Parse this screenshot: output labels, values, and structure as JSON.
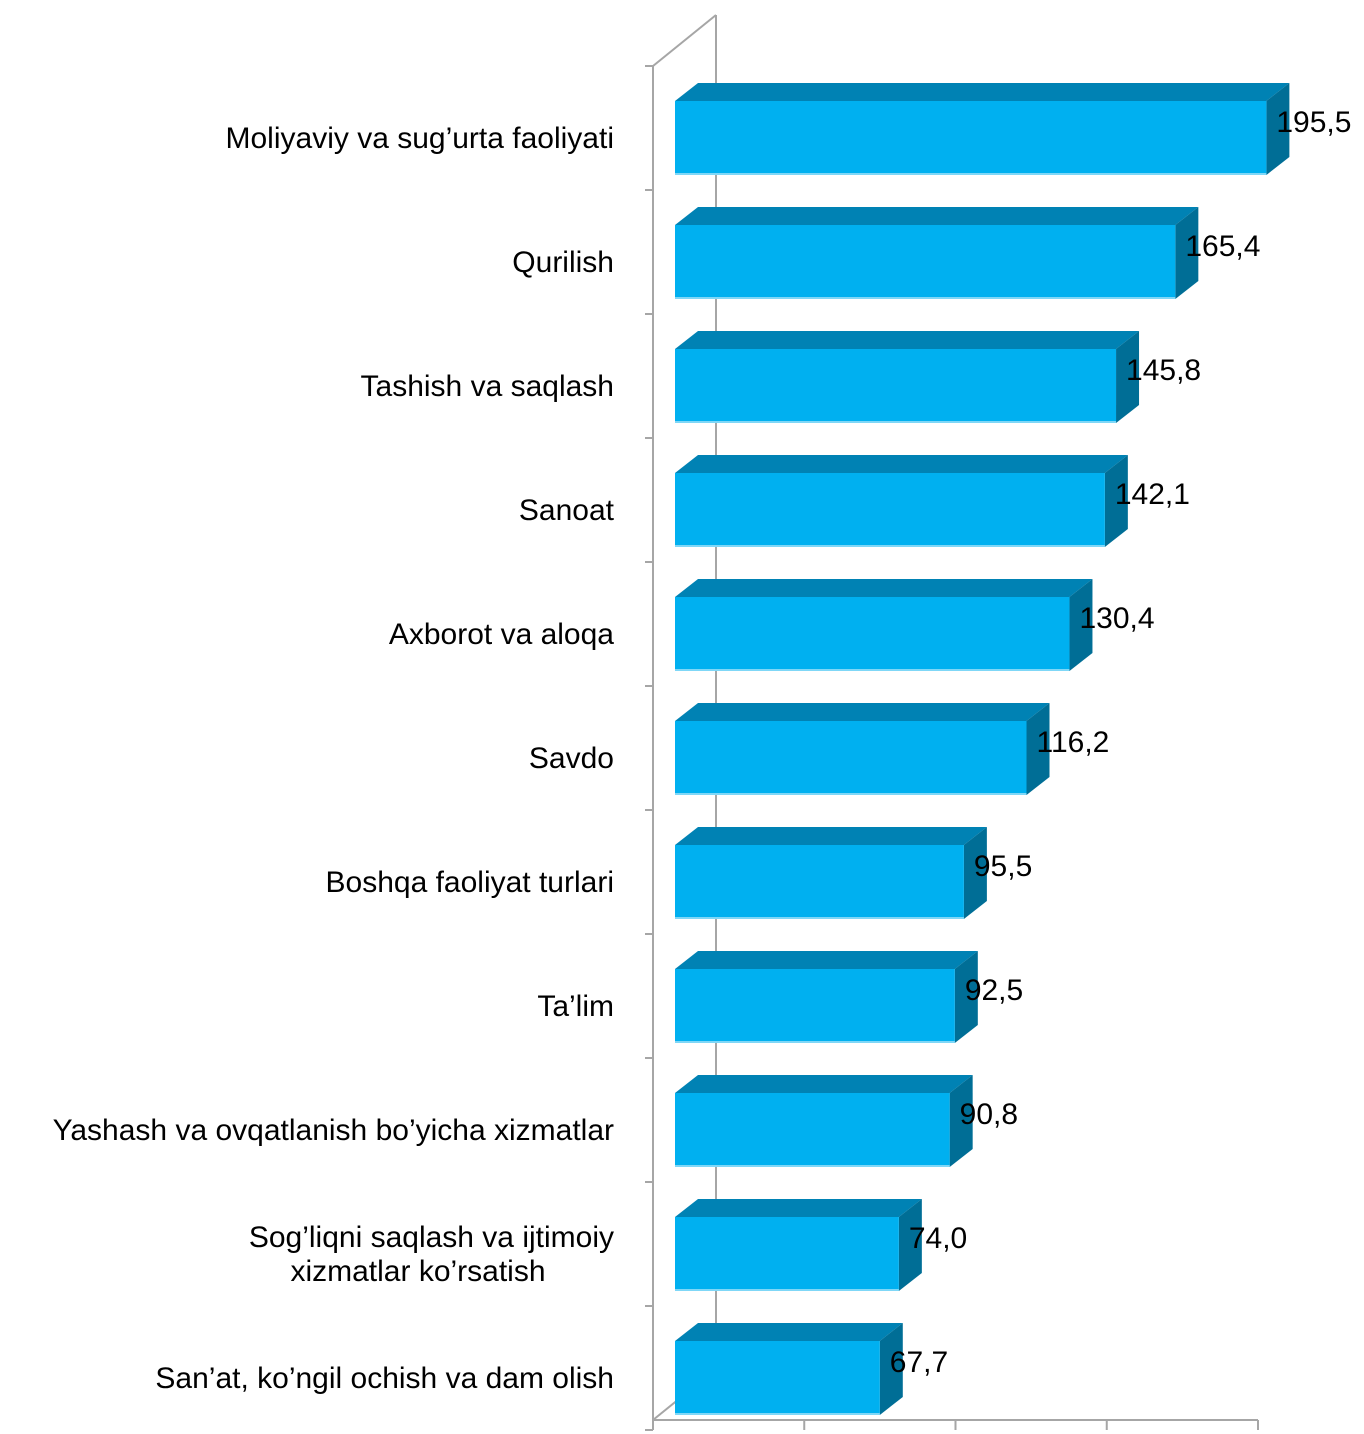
{
  "chart_data": {
    "type": "bar",
    "orientation": "horizontal",
    "style": "3d",
    "title": "",
    "xlabel": "",
    "ylabel": "",
    "xlim": [
      0,
      200
    ],
    "xticks": [
      "0",
      "50",
      "100",
      "150",
      "200"
    ],
    "grid": false,
    "legend": "none",
    "bar_color": "#00B0F0",
    "bar_top_color": "#0082B4",
    "bar_side_color": "#006E96",
    "axis_color": "#A6A6A6",
    "categories": [
      [
        "Moliyaviy va sug’urta faoliyati"
      ],
      [
        "Qurilish"
      ],
      [
        "Tashish va saqlash"
      ],
      [
        "Sanoat"
      ],
      [
        "Axborot va aloqa"
      ],
      [
        "Savdo"
      ],
      [
        "Boshqa faoliyat turlari"
      ],
      [
        "Ta’lim"
      ],
      [
        "Yashash va ovqatlanish bo’yicha xizmatlar"
      ],
      [
        "Sog’liqni saqlash va ijtimoiy",
        "xizmatlar ko’rsatish"
      ],
      [
        "San’at, ko’ngil ochish va dam olish"
      ]
    ],
    "values": [
      195.5,
      165.4,
      145.8,
      142.1,
      130.4,
      116.2,
      95.5,
      92.5,
      90.8,
      74.0,
      67.7
    ],
    "value_labels": [
      "195,5",
      "165,4",
      "145,8",
      "142,1",
      "130,4",
      "116,2",
      "95,5",
      "92,5",
      "90,8",
      "74,0",
      "67,7"
    ]
  }
}
